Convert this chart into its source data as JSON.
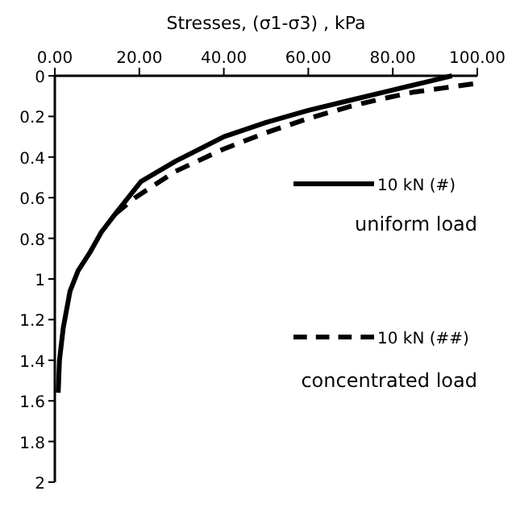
{
  "chart_data": {
    "type": "line",
    "xlabel": "Stresses, (σ1-σ3) , kPa",
    "xlim": [
      0,
      100
    ],
    "xticks": [
      {
        "value": 0,
        "label": "0.00"
      },
      {
        "value": 20,
        "label": "20.00"
      },
      {
        "value": 40,
        "label": "40.00"
      },
      {
        "value": 60,
        "label": "60.00"
      },
      {
        "value": 80,
        "label": "80.00"
      },
      {
        "value": 100,
        "label": "100.00"
      }
    ],
    "ylim": [
      2,
      0
    ],
    "yticks": [
      0,
      0.2,
      0.4,
      0.6,
      0.8,
      1,
      1.2,
      1.4,
      1.6,
      1.8,
      2
    ],
    "legend": "right",
    "grid": false,
    "annotations": [
      "uniform load",
      "concentrated load"
    ],
    "series": [
      {
        "name": "10 kN (#)",
        "color": "#000000",
        "line_style": "solid",
        "x": [
          0.8,
          1.1,
          2,
          3.6,
          5.5,
          8.3,
          11,
          14.3,
          20.4,
          28.6,
          40,
          50,
          60,
          70,
          80,
          88,
          94
        ],
        "values": [
          1.56,
          1.4,
          1.24,
          1.06,
          0.96,
          0.87,
          0.77,
          0.68,
          0.52,
          0.42,
          0.3,
          0.23,
          0.17,
          0.12,
          0.07,
          0.03,
          0
        ]
      },
      {
        "name": "10 kN (##)",
        "color": "#000000",
        "line_style": "dashed",
        "x": [
          14.3,
          19,
          28.6,
          40,
          50,
          60,
          70,
          76,
          85,
          92,
          99
        ],
        "values": [
          0.68,
          0.6,
          0.47,
          0.36,
          0.28,
          0.21,
          0.15,
          0.12,
          0.08,
          0.06,
          0.04
        ]
      }
    ]
  }
}
